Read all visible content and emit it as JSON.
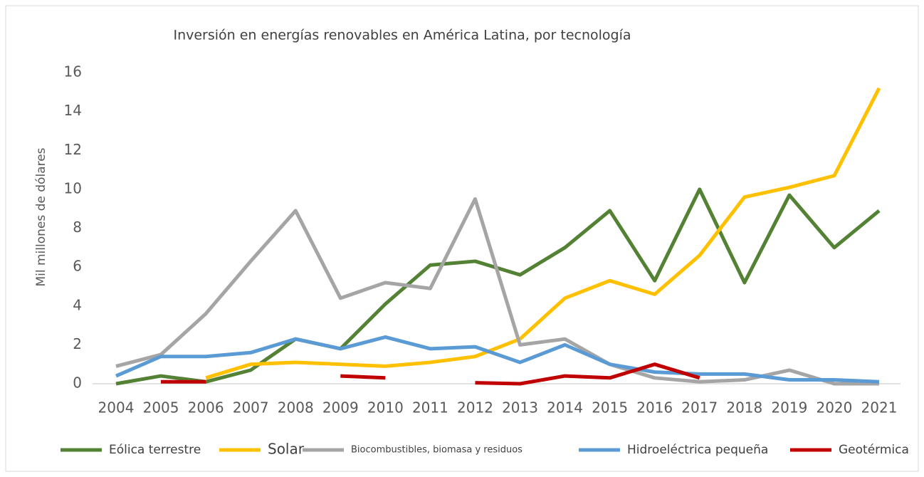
{
  "chart_data": {
    "type": "line",
    "title": "Inversión en energías renovables en América Latina, por tecnología",
    "y_label": "Mil millones de dólares",
    "categories": [
      "2004",
      "2005",
      "2006",
      "2007",
      "2008",
      "2009",
      "2010",
      "2011",
      "2012",
      "2013",
      "2014",
      "2015",
      "2016",
      "2017",
      "2018",
      "2019",
      "2020",
      "2021"
    ],
    "ylim": [
      0,
      16
    ],
    "yticks": [
      0,
      2,
      4,
      6,
      8,
      10,
      12,
      14,
      16
    ],
    "grid": false,
    "legend": "bottom",
    "series": [
      {
        "name": "Eólica terrestre",
        "color": "#548235",
        "values": [
          0,
          0.4,
          0.1,
          0.7,
          2.3,
          1.8,
          4.1,
          6.1,
          6.3,
          5.6,
          7.0,
          8.9,
          5.3,
          10.0,
          5.2,
          9.7,
          7.0,
          8.9
        ]
      },
      {
        "name": "Solar",
        "color": "#ffc000",
        "values": [
          null,
          null,
          0.3,
          1.0,
          1.1,
          1.0,
          0.9,
          1.1,
          1.4,
          2.3,
          4.4,
          5.3,
          4.6,
          6.6,
          9.6,
          10.1,
          10.7,
          15.2
        ]
      },
      {
        "name": "Biocombustibles, biomasa y residuos",
        "color": "#a5a5a5",
        "values": [
          0.9,
          1.5,
          3.6,
          6.3,
          8.9,
          4.4,
          5.2,
          4.9,
          9.5,
          2.0,
          2.3,
          1.0,
          0.3,
          0.1,
          0.2,
          0.7,
          0.0,
          0.0
        ]
      },
      {
        "name": "Hidroeléctrica pequeña",
        "color": "#5b9bd5",
        "values": [
          0.4,
          1.4,
          1.4,
          1.6,
          2.3,
          1.8,
          2.4,
          1.8,
          1.9,
          1.1,
          2.0,
          1.0,
          0.6,
          0.5,
          0.5,
          0.2,
          0.2,
          0.1
        ]
      },
      {
        "name": "Geotérmica",
        "color": "#c00000",
        "values": [
          null,
          0.1,
          0.1,
          null,
          null,
          0.4,
          0.3,
          null,
          0.05,
          0.0,
          0.4,
          0.3,
          1.0,
          0.3,
          null,
          null,
          null,
          null
        ]
      }
    ]
  }
}
